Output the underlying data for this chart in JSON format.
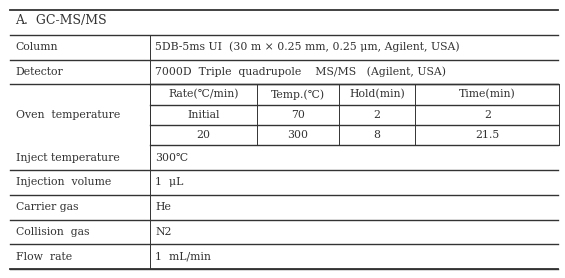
{
  "title": "A.  GC-MS/MS",
  "title_fontsize": 9,
  "body_fontsize": 7.8,
  "background_color": "#ffffff",
  "text_color": "#333333",
  "col_divider": 0.265,
  "oven_sub_cols": [
    0.265,
    0.455,
    0.6,
    0.735,
    0.99
  ],
  "rows": [
    {
      "label": "Column",
      "value": "5DB-5ms UI  (30 m × 0.25 mm, 0.25 μm, Agilent, USA)",
      "type": "simple"
    },
    {
      "label": "Detector",
      "value": "7000D  Triple  quadrupole    MS/MS   (Agilent, USA)",
      "type": "simple"
    },
    {
      "label": "Oven  temperature",
      "type": "oven",
      "sub_headers": [
        "Rate(℃/min)",
        "Temp.(℃)",
        "Hold(min)",
        "Time(min)"
      ],
      "sub_rows": [
        [
          "Initial",
          "70",
          "2",
          "2"
        ],
        [
          "20",
          "300",
          "8",
          "21.5"
        ]
      ]
    },
    {
      "label": "Inject temperature",
      "value": "300℃",
      "type": "simple"
    },
    {
      "label": "Injection  volume",
      "value": "1  μL",
      "type": "simple"
    },
    {
      "label": "Carrier gas",
      "value": "He",
      "type": "simple"
    },
    {
      "label": "Collision  gas",
      "value": "N2",
      "type": "simple"
    },
    {
      "label": "Flow  rate",
      "value": "1  mL/min",
      "type": "simple"
    }
  ]
}
